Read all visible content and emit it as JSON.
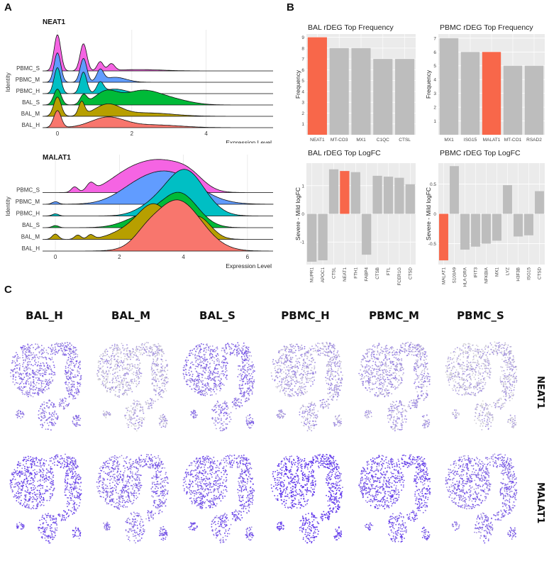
{
  "panel_labels": {
    "a": "A",
    "b": "B",
    "c": "C"
  },
  "chart_data": [
    {
      "id": "ridge_neat1",
      "type": "ridgeline",
      "title": "NEAT1",
      "xlabel": "Expression Level",
      "ylabel": "Identity",
      "xlim": [
        -0.4,
        5.8
      ],
      "xticks": [
        0,
        2,
        4
      ],
      "grid": true,
      "series": [
        {
          "name": "BAL_H",
          "color": "#F8766D",
          "bumps": [
            [
              0,
              0.1,
              0.75
            ],
            [
              1.35,
              0.45,
              0.45
            ],
            [
              2.6,
              0.7,
              0.12
            ]
          ]
        },
        {
          "name": "BAL_M",
          "color": "#B79F00",
          "bumps": [
            [
              0,
              0.1,
              0.85
            ],
            [
              0.65,
              0.08,
              0.6
            ],
            [
              1.35,
              0.35,
              0.5
            ],
            [
              2.4,
              0.7,
              0.15
            ]
          ]
        },
        {
          "name": "BAL_S",
          "color": "#00BA38",
          "bumps": [
            [
              0,
              0.1,
              0.7
            ],
            [
              0.7,
              0.09,
              0.4
            ],
            [
              1.3,
              0.3,
              0.55
            ],
            [
              2.25,
              0.5,
              0.6
            ],
            [
              3.1,
              0.5,
              0.2
            ]
          ]
        },
        {
          "name": "PBMC_H",
          "color": "#00BFC4",
          "bumps": [
            [
              0,
              0.09,
              1.15
            ],
            [
              0.7,
              0.09,
              0.95
            ],
            [
              1.15,
              0.09,
              0.45
            ],
            [
              1.55,
              0.3,
              0.2
            ]
          ]
        },
        {
          "name": "PBMC_M",
          "color": "#619CFF",
          "bumps": [
            [
              0,
              0.09,
              1.3
            ],
            [
              0.7,
              0.09,
              1.05
            ],
            [
              1.15,
              0.09,
              0.5
            ],
            [
              1.55,
              0.3,
              0.22
            ]
          ]
        },
        {
          "name": "PBMC_S",
          "color": "#F564E3",
          "bumps": [
            [
              0,
              0.09,
              1.6
            ],
            [
              0.7,
              0.09,
              1.2
            ],
            [
              1.15,
              0.08,
              0.4
            ],
            [
              1.45,
              0.09,
              0.3
            ],
            [
              2.2,
              0.6,
              0.06
            ]
          ]
        }
      ]
    },
    {
      "id": "ridge_malat1",
      "type": "ridgeline",
      "title": "MALAT1",
      "xlabel": "Expression Level",
      "ylabel": "Identity",
      "xlim": [
        -0.4,
        6.8
      ],
      "xticks": [
        0,
        2,
        4,
        6
      ],
      "grid": true,
      "series": [
        {
          "name": "BAL_H",
          "color": "#F8766D",
          "bumps": [
            [
              3.8,
              0.75,
              2.4
            ],
            [
              2.8,
              0.35,
              0.3
            ]
          ]
        },
        {
          "name": "BAL_M",
          "color": "#B79F00",
          "bumps": [
            [
              0,
              0.1,
              0.25
            ],
            [
              0.7,
              0.1,
              0.2
            ],
            [
              1.1,
              0.1,
              0.2
            ],
            [
              3.1,
              0.5,
              1.6
            ],
            [
              4.45,
              0.4,
              1.05
            ],
            [
              2.2,
              0.5,
              0.35
            ]
          ]
        },
        {
          "name": "BAL_S",
          "color": "#00BA38",
          "bumps": [
            [
              0,
              0.1,
              0.1
            ],
            [
              3.9,
              0.55,
              1.55
            ],
            [
              2.8,
              0.6,
              0.55
            ]
          ]
        },
        {
          "name": "PBMC_H",
          "color": "#00BFC4",
          "bumps": [
            [
              0,
              0.1,
              0.1
            ],
            [
              4.05,
              0.6,
              2.15
            ],
            [
              3.0,
              0.5,
              0.35
            ]
          ]
        },
        {
          "name": "PBMC_M",
          "color": "#619CFF",
          "bumps": [
            [
              0,
              0.1,
              0.12
            ],
            [
              3.5,
              0.9,
              1.5
            ],
            [
              2.4,
              0.6,
              0.3
            ]
          ]
        },
        {
          "name": "PBMC_S",
          "color": "#F564E3",
          "bumps": [
            [
              0.6,
              0.1,
              0.25
            ],
            [
              1.1,
              0.12,
              0.35
            ],
            [
              2.2,
              0.6,
              0.7
            ],
            [
              3.3,
              0.7,
              1.35
            ],
            [
              4.2,
              0.45,
              0.55
            ]
          ]
        }
      ]
    },
    {
      "id": "bal_freq",
      "type": "bar",
      "title": "BAL rDEG Top Frequency",
      "ylabel": "Frequency",
      "categories": [
        "NEAT1",
        "MT-CO3",
        "MX1",
        "C1QC",
        "CTSL"
      ],
      "values": [
        9,
        8,
        8,
        7,
        7
      ],
      "highlight": "NEAT1",
      "ylim": [
        0,
        9.3
      ],
      "yticks": [
        1,
        2,
        3,
        4,
        5,
        6,
        7,
        8,
        9
      ],
      "rotate_labels": false
    },
    {
      "id": "pbmc_freq",
      "type": "bar",
      "title": "PBMC rDEG Top Frequency",
      "ylabel": "Frequency",
      "categories": [
        "MX1",
        "ISG15",
        "MALAT1",
        "MT-CO1",
        "RSAD2"
      ],
      "values": [
        7,
        6,
        6,
        5,
        5
      ],
      "highlight": "MALAT1",
      "ylim": [
        0,
        7.3
      ],
      "yticks": [
        1,
        2,
        3,
        4,
        5,
        6,
        7
      ],
      "rotate_labels": false
    },
    {
      "id": "bal_logfc",
      "type": "bar",
      "title": "BAL rDEG Top LogFC",
      "ylabel": "Severe - Mild logFC",
      "categories": [
        "NUPR1",
        "APOC1",
        "CTSL",
        "NEAT1",
        "FTH1",
        "FABP4",
        "CTSB",
        "FTL",
        "FCER1G",
        "CTSD"
      ],
      "values": [
        -1.7,
        -1.65,
        1.58,
        1.52,
        1.48,
        -1.45,
        1.35,
        1.32,
        1.28,
        1.05
      ],
      "highlight": "NEAT1",
      "ylim": [
        -1.8,
        1.8
      ],
      "yticks": [
        -1,
        0,
        1
      ],
      "rotate_labels": true
    },
    {
      "id": "pbmc_logfc",
      "type": "bar",
      "title": "PBMC rDEG Top LogFC",
      "ylabel": "Severe - Mild logFC",
      "categories": [
        "MALAT1",
        "S100A9",
        "HLA-DRA",
        "IFIT3",
        "NFKBIA",
        "MX1",
        "LYZ",
        "H3F3B",
        "ISG15",
        "CTSD"
      ],
      "values": [
        -0.78,
        0.8,
        -0.6,
        -0.55,
        -0.5,
        -0.45,
        0.48,
        -0.38,
        -0.36,
        0.38
      ],
      "highlight": "MALAT1",
      "ylim": [
        -0.85,
        0.85
      ],
      "yticks": [
        -0.5,
        0.0,
        0.5
      ],
      "rotate_labels": true
    }
  ],
  "umap": {
    "columns": [
      "BAL_H",
      "BAL_M",
      "BAL_S",
      "PBMC_H",
      "PBMC_M",
      "PBMC_S"
    ],
    "rows": [
      {
        "gene": "NEAT1",
        "intensity": [
          0.55,
          0.22,
          0.55,
          0.3,
          0.35,
          0.2
        ]
      },
      {
        "gene": "MALAT1",
        "intensity": [
          0.75,
          0.6,
          0.7,
          0.9,
          0.78,
          0.6
        ]
      }
    ],
    "low_color": "#d4d4d4",
    "high_color": "#5326ee"
  }
}
